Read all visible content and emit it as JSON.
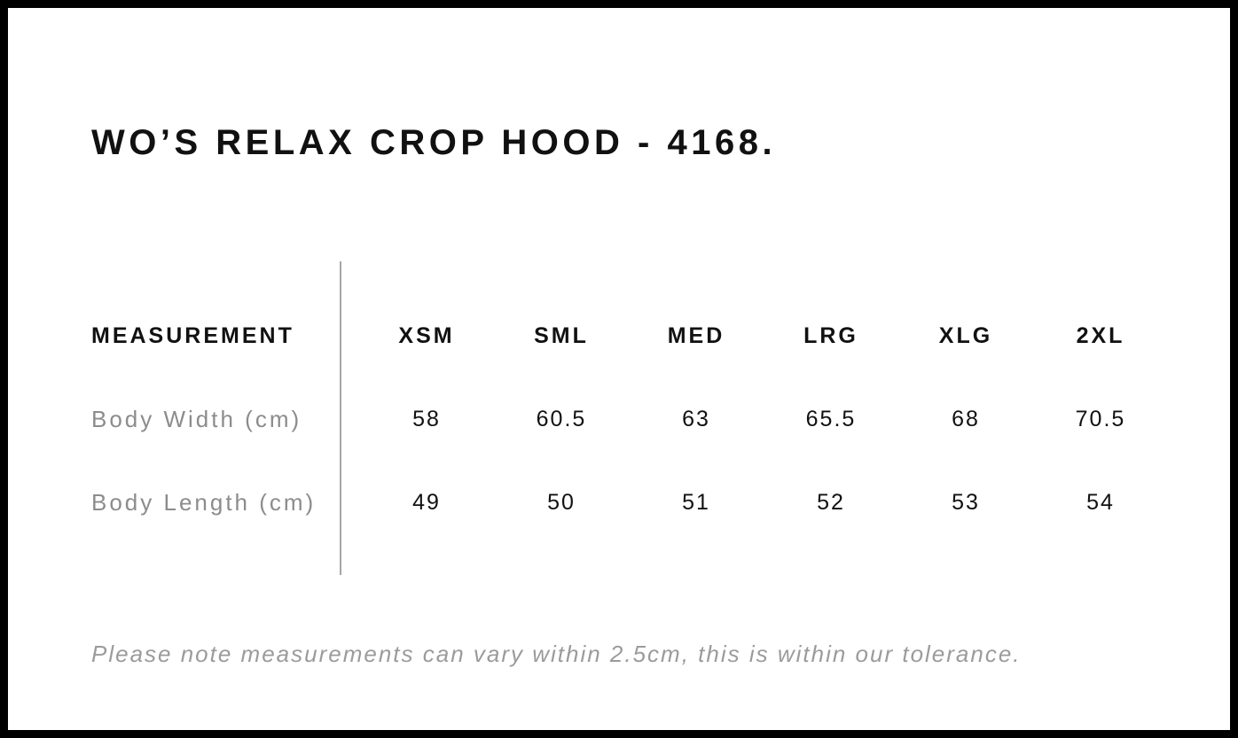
{
  "page": {
    "title": "WO’S RELAX CROP HOOD - 4168.",
    "tolerance_note": "Please note measurements can vary within 2.5cm, this is within our tolerance."
  },
  "size_chart": {
    "measurement_header": "MEASUREMENT",
    "sizes": [
      "XSM",
      "SML",
      "MED",
      "LRG",
      "XLG",
      "2XL"
    ],
    "rows": [
      {
        "label": "Body Width (cm)",
        "values": [
          "58",
          "60.5",
          "63",
          "65.5",
          "68",
          "70.5"
        ]
      },
      {
        "label": "Body Length (cm)",
        "values": [
          "49",
          "50",
          "51",
          "52",
          "53",
          "54"
        ]
      }
    ]
  }
}
